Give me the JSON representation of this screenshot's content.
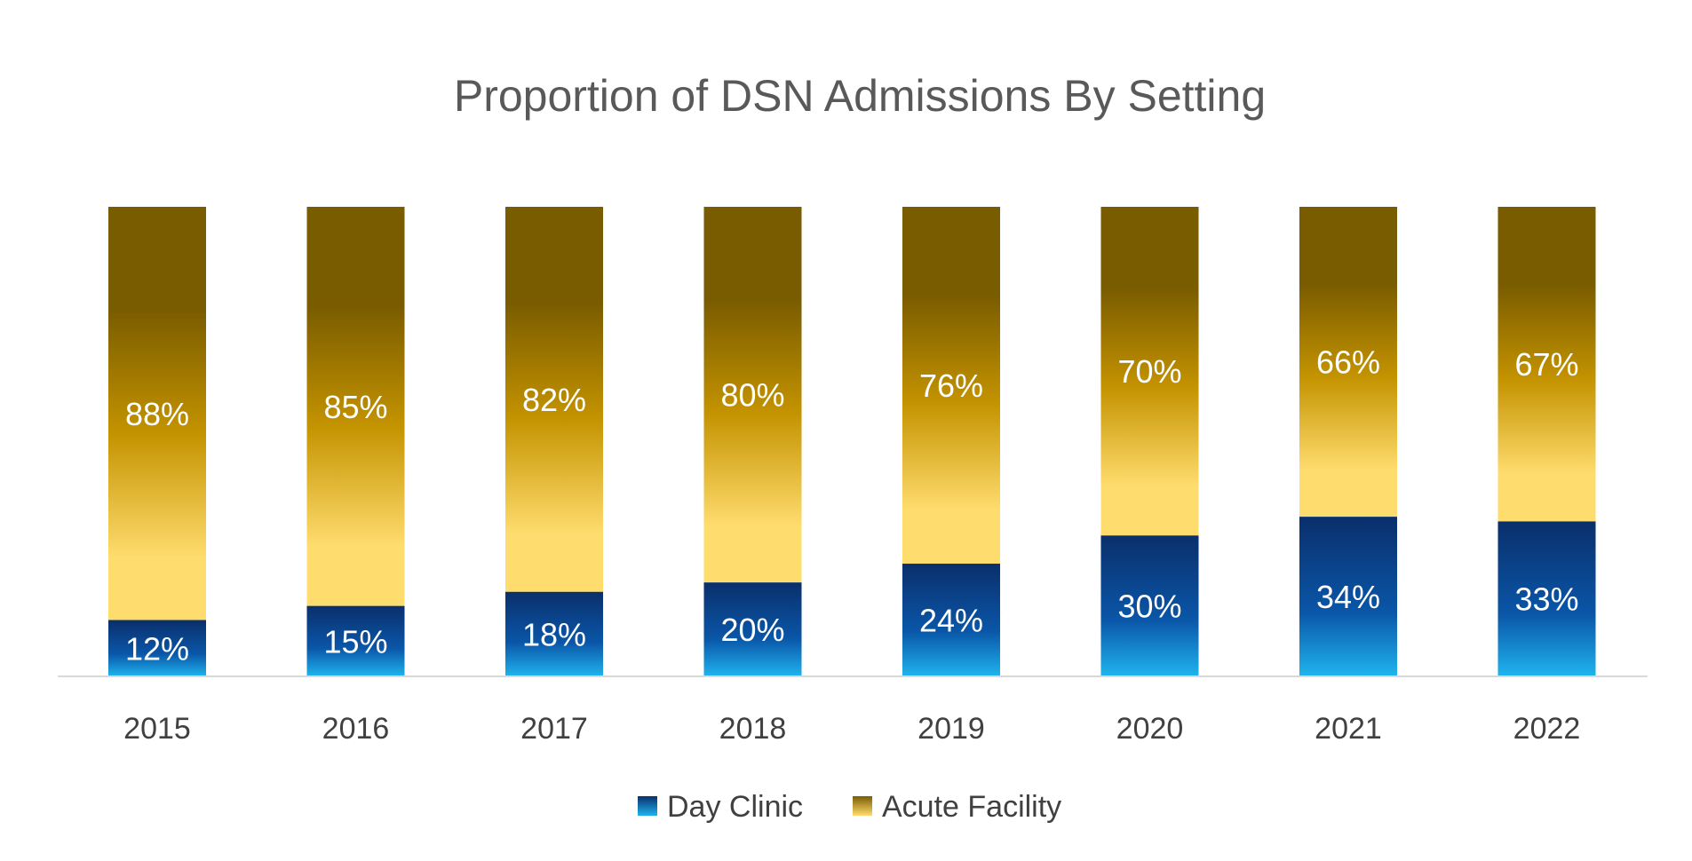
{
  "chart_data": {
    "type": "bar",
    "stacked": true,
    "title": "Proportion of DSN Admissions By Setting",
    "xlabel": "",
    "ylabel": "",
    "ylim": [
      0,
      100
    ],
    "grid": false,
    "legend_position": "bottom",
    "categories": [
      "2015",
      "2016",
      "2017",
      "2018",
      "2019",
      "2020",
      "2021",
      "2022"
    ],
    "series": [
      {
        "name": "Day Clinic",
        "values": [
          12,
          15,
          18,
          20,
          24,
          30,
          34,
          33
        ],
        "labels": [
          "12%",
          "15%",
          "18%",
          "20%",
          "24%",
          "30%",
          "34%",
          "33%"
        ],
        "color_top": "#0a2f6b",
        "color_bottom": "#1fb4ee"
      },
      {
        "name": "Acute Facility",
        "values": [
          88,
          85,
          82,
          80,
          76,
          70,
          66,
          67
        ],
        "labels": [
          "88%",
          "85%",
          "82%",
          "80%",
          "76%",
          "70%",
          "66%",
          "67%"
        ],
        "color_top": "#7a5c00",
        "color_mid": "#c49300",
        "color_bottom": "#ffdc6e"
      }
    ]
  }
}
